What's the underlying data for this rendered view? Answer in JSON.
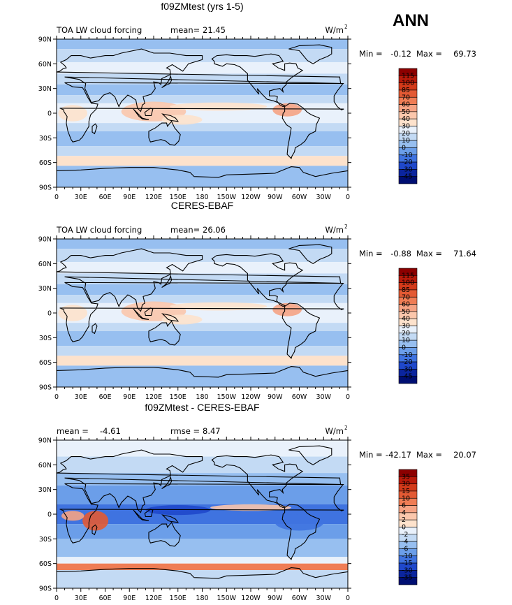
{
  "season": "ANN",
  "chart_data": [
    {
      "type": "heatmap",
      "title": "f09ZMtest (yrs 1-5)",
      "left_label": "TOA LW cloud forcing",
      "stat1_label": "mean=",
      "stat1_value": "21.45",
      "units_base": "W/m",
      "units_exp": "2",
      "min_label": "Min =",
      "min_value": "-0.12",
      "max_label": "Max =",
      "max_value": "69.73",
      "colorbar_levels": [
        "115",
        "100",
        "85",
        "70",
        "60",
        "50",
        "40",
        "30",
        "20",
        "10",
        "0",
        "-10",
        "-20",
        "-30",
        "-45"
      ],
      "colorbar_colors": [
        "#8c0000",
        "#b91a0a",
        "#d33a1a",
        "#e35a34",
        "#ef7d55",
        "#f5a384",
        "#fbc7ac",
        "#fde2cc",
        "#e9f1fb",
        "#c3daf4",
        "#97bff0",
        "#6b9ee9",
        "#3f73e0",
        "#1f48cb",
        "#0b259e",
        "#000f72"
      ],
      "xticks": [
        "0",
        "30E",
        "60E",
        "90E",
        "120E",
        "150E",
        "180",
        "150W",
        "120W",
        "90W",
        "60W",
        "30W",
        "0"
      ],
      "yticks": [
        "90N",
        "60N",
        "30N",
        "0",
        "30S",
        "60S",
        "90S"
      ]
    },
    {
      "type": "heatmap",
      "title": "CERES-EBAF",
      "left_label": "TOA LW cloud forcing",
      "stat1_label": "mean=",
      "stat1_value": "26.06",
      "units_base": "W/m",
      "units_exp": "2",
      "min_label": "Min =",
      "min_value": "-0.88",
      "max_label": "Max =",
      "max_value": "71.64",
      "colorbar_levels": [
        "115",
        "100",
        "85",
        "70",
        "60",
        "50",
        "40",
        "30",
        "20",
        "10",
        "0",
        "-10",
        "-20",
        "-30",
        "-45"
      ],
      "colorbar_colors": [
        "#8c0000",
        "#b91a0a",
        "#d33a1a",
        "#e35a34",
        "#ef7d55",
        "#f5a384",
        "#fbc7ac",
        "#fde2cc",
        "#e9f1fb",
        "#c3daf4",
        "#97bff0",
        "#6b9ee9",
        "#3f73e0",
        "#1f48cb",
        "#0b259e",
        "#000f72"
      ],
      "xticks": [
        "0",
        "30E",
        "60E",
        "90E",
        "120E",
        "150E",
        "180",
        "150W",
        "120W",
        "90W",
        "60W",
        "30W",
        "0"
      ],
      "yticks": [
        "90N",
        "60N",
        "30N",
        "0",
        "30S",
        "60S",
        "90S"
      ]
    },
    {
      "type": "heatmap",
      "title": "f09ZMtest - CERES-EBAF",
      "left_label": "mean =",
      "left_value": "-4.61",
      "stat1_label": "rmse =",
      "stat1_value": "8.47",
      "units_base": "W/m",
      "units_exp": "2",
      "min_label": "Min =",
      "min_value": "-42.17",
      "max_label": "Max =",
      "max_value": "20.07",
      "colorbar_levels": [
        "35",
        "30",
        "15",
        "10",
        "6",
        "4",
        "2",
        "0",
        "-2",
        "-4",
        "-6",
        "-10",
        "-15",
        "-30",
        "-35"
      ],
      "colorbar_colors": [
        "#8c0000",
        "#b91a0a",
        "#d33a1a",
        "#e35a34",
        "#ef7d55",
        "#f5a384",
        "#fbc7ac",
        "#fde2cc",
        "#e9f1fb",
        "#c3daf4",
        "#97bff0",
        "#6b9ee9",
        "#3f73e0",
        "#1f48cb",
        "#0b259e",
        "#000f72"
      ],
      "xticks": [
        "0",
        "30E",
        "60E",
        "90E",
        "120E",
        "150E",
        "180",
        "150W",
        "120W",
        "90W",
        "60W",
        "30W",
        "0"
      ],
      "yticks": [
        "90N",
        "60N",
        "30N",
        "0",
        "30S",
        "60S",
        "90S"
      ]
    }
  ]
}
